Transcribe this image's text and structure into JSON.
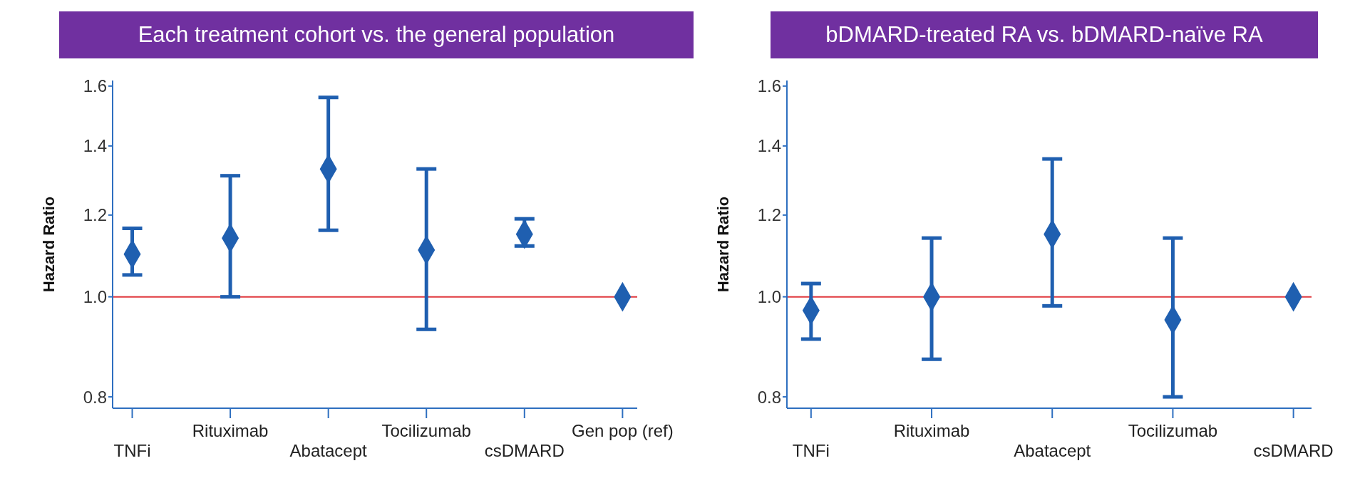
{
  "chart_data": [
    {
      "type": "scatter",
      "title": "Each treatment cohort vs. the general population",
      "ylabel": "Hazard Ratio",
      "categories": [
        "TNFi",
        "Rituximab",
        "Abatacept",
        "Tocilizumab",
        "csDMARD",
        "Gen pop (ref)"
      ],
      "series": [
        {
          "color": "#1f5fb0",
          "values": [
            1.1,
            1.14,
            1.33,
            1.11,
            1.15,
            1.0
          ],
          "errors": [
            [
              1.05,
              1.165
            ],
            [
              1.0,
              1.31
            ],
            [
              1.16,
              1.56
            ],
            [
              0.93,
              1.33
            ],
            [
              1.12,
              1.19
            ],
            null
          ]
        }
      ],
      "ylim": [
        0.78,
        1.62
      ],
      "yticks": [
        0.8,
        {
          "value": 1,
          "label": "1.0"
        },
        1.2,
        1.4,
        1.6
      ],
      "log": "y",
      "marker": "diamond",
      "grid": false,
      "legend": false,
      "ref_lines": [
        {
          "axis": "y",
          "value": 1,
          "color": "#e0393e"
        }
      ]
    },
    {
      "type": "scatter",
      "title": "bDMARD-treated RA vs. bDMARD-naïve RA",
      "ylabel": "Hazard Ratio",
      "categories": [
        "TNFi",
        "Rituximab",
        "Abatacept",
        "Tocilizumab",
        "csDMARD"
      ],
      "series": [
        {
          "color": "#1f5fb0",
          "values": [
            0.97,
            1.0,
            1.15,
            0.95,
            1.0
          ],
          "errors": [
            [
              0.91,
              1.03
            ],
            [
              0.87,
              1.14
            ],
            [
              0.98,
              1.36
            ],
            [
              0.8,
              1.14
            ],
            null
          ]
        }
      ],
      "ylim": [
        0.78,
        1.62
      ],
      "yticks": [
        0.8,
        {
          "value": 1,
          "label": "1.0"
        },
        1.2,
        1.4,
        1.6
      ],
      "log": "y",
      "marker": "diamond",
      "grid": false,
      "legend": false,
      "ref_lines": [
        {
          "axis": "y",
          "value": 1,
          "color": "#e0393e"
        }
      ]
    }
  ]
}
